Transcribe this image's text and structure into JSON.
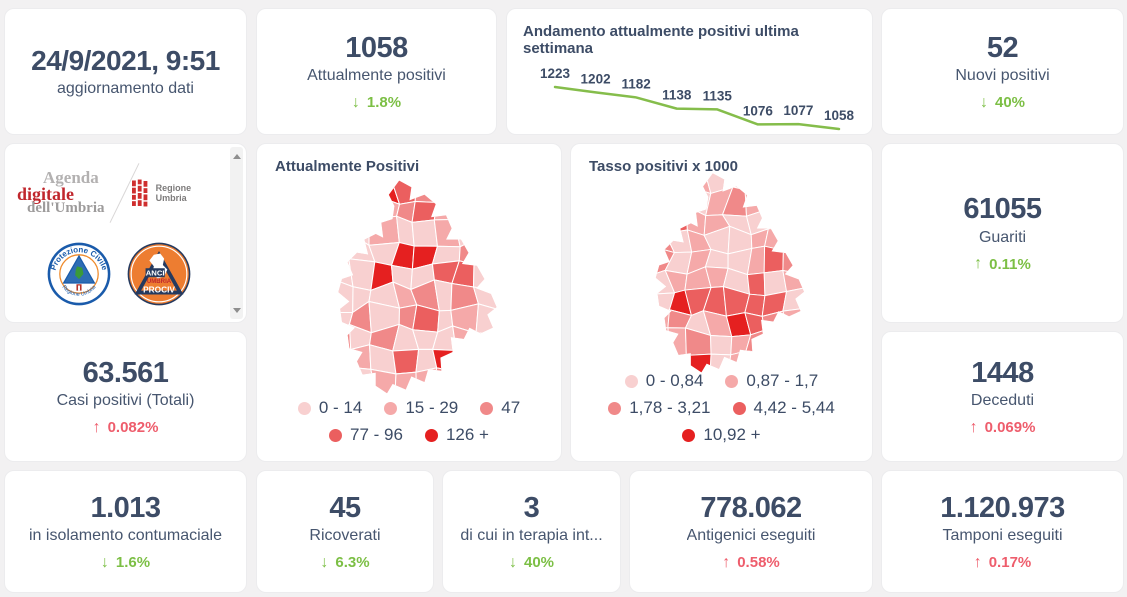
{
  "theme": {
    "page_bg": "#f2f1f2",
    "card_bg": "#ffffff",
    "number_color": "#3d4c66",
    "label_color": "#47566f",
    "green": "#7cbf45",
    "red": "#ee5d6c"
  },
  "stats": {
    "update": {
      "value": "24/9/2021, 9:51",
      "label": "aggiornamento dati"
    },
    "attualmente_positivi": {
      "value": "1058",
      "label": "Attualmente positivi",
      "delta_arrow": "↓",
      "delta_value": "1.8%",
      "delta_color": "green"
    },
    "nuovi_positivi": {
      "value": "52",
      "label": "Nuovi positivi",
      "delta_arrow": "↓",
      "delta_value": "40%",
      "delta_color": "green"
    },
    "guariti": {
      "value": "61055",
      "label": "Guariti",
      "delta_arrow": "↑",
      "delta_value": "0.11%",
      "delta_color": "green"
    },
    "casi_totali": {
      "value": "63.561",
      "label": "Casi positivi (Totali)",
      "delta_arrow": "↑",
      "delta_value": "0.082%",
      "delta_color": "red"
    },
    "deceduti": {
      "value": "1448",
      "label": "Deceduti",
      "delta_arrow": "↑",
      "delta_value": "0.069%",
      "delta_color": "red"
    },
    "isolamento": {
      "value": "1.013",
      "label": "in isolamento contumaciale",
      "delta_arrow": "↓",
      "delta_value": "1.6%",
      "delta_color": "green"
    },
    "ricoverati": {
      "value": "45",
      "label": "Ricoverati",
      "delta_arrow": "↓",
      "delta_value": "6.3%",
      "delta_color": "green"
    },
    "terapia_intensiva": {
      "value": "3",
      "label": "di cui in terapia int...",
      "delta_arrow": "↓",
      "delta_value": "40%",
      "delta_color": "green"
    },
    "antigenici": {
      "value": "778.062",
      "label": "Antigenici eseguiti",
      "delta_arrow": "↑",
      "delta_value": "0.58%",
      "delta_color": "red"
    },
    "tamponi": {
      "value": "1.120.973",
      "label": "Tamponi eseguiti",
      "delta_arrow": "↑",
      "delta_value": "0.17%",
      "delta_color": "red"
    }
  },
  "chart_data": {
    "type": "line",
    "title": "Andamento attualmente positivi ultima settimana",
    "values": [
      1223,
      1202,
      1182,
      1138,
      1135,
      1076,
      1077,
      1058
    ],
    "data_labels": [
      "1223",
      "1202",
      "1182",
      "1138",
      "1135",
      "1076",
      "1077",
      "1058"
    ],
    "xlabel": "",
    "ylabel": "",
    "ylim": [
      1058,
      1223
    ],
    "grid": false,
    "legend": false,
    "line_color": "#85bd4b",
    "label_color": "#3d4c66"
  },
  "maps": {
    "attualmente": {
      "title": "Attualmente Positivi",
      "legend": [
        {
          "label": "0 - 14",
          "color": "#f8d0d0"
        },
        {
          "label": "15 - 29",
          "color": "#f5a9a9"
        },
        {
          "label": "47",
          "color": "#f08989"
        },
        {
          "label": "77 - 96",
          "color": "#eb5f5f"
        },
        {
          "label": "126 +",
          "color": "#e52020"
        }
      ]
    },
    "tasso": {
      "title": "Tasso positivi x 1000",
      "legend": [
        {
          "label": "0 - 0,84",
          "color": "#f8d0d0"
        },
        {
          "label": "0,87 - 1,7",
          "color": "#f5a9a9"
        },
        {
          "label": "1,78 - 3,21",
          "color": "#f08989"
        },
        {
          "label": "4,42 - 5,44",
          "color": "#eb5f5f"
        },
        {
          "label": "10,92 +",
          "color": "#e52020"
        }
      ]
    }
  },
  "logos": {
    "agenda_digitale": {
      "line1": "Agenda",
      "line2": "digitale",
      "line3": "dell'Umbria"
    },
    "regione_umbria": {
      "label": "Regione Umbria"
    },
    "protezione_civile": {
      "arc_top": "Protezione Civile",
      "arc_bottom": "Regione Umbria"
    },
    "anci_prociv": {
      "line1": "ANCI",
      "line2": "UMBRIA",
      "line3": "PROCIV"
    }
  }
}
